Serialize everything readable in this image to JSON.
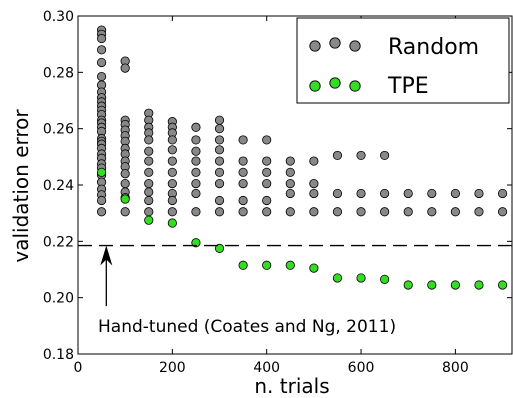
{
  "chart_data": {
    "type": "scatter",
    "xlabel": "n. trials",
    "ylabel": "validation error",
    "xlim": [
      0,
      920
    ],
    "ylim": [
      0.18,
      0.3
    ],
    "xticks": [
      0,
      200,
      400,
      600,
      800
    ],
    "yticks": [
      0.18,
      0.2,
      0.22,
      0.24,
      0.26,
      0.28,
      0.3
    ],
    "xtick_labels": [
      "0",
      "200",
      "400",
      "600",
      "800"
    ],
    "ytick_labels": [
      "0.18",
      "0.20",
      "0.22",
      "0.24",
      "0.26",
      "0.28",
      "0.30"
    ],
    "grid": false,
    "legend_position": "top-right",
    "reference_line": {
      "y": 0.2185,
      "style": "dashed",
      "color": "#000000"
    },
    "annotation": {
      "text": "Hand-tuned (Coates and Ng, 2011)",
      "arrow_x": 60,
      "arrow_from_y": 0.197,
      "arrow_to_y": 0.2185
    },
    "series": [
      {
        "name": "Random",
        "color": "#888888",
        "points": [
          [
            50,
            0.295
          ],
          [
            50,
            0.2935
          ],
          [
            50,
            0.292
          ],
          [
            50,
            0.288
          ],
          [
            50,
            0.2835
          ],
          [
            50,
            0.2785
          ],
          [
            50,
            0.2755
          ],
          [
            50,
            0.273
          ],
          [
            50,
            0.271
          ],
          [
            50,
            0.2695
          ],
          [
            50,
            0.268
          ],
          [
            50,
            0.2665
          ],
          [
            50,
            0.265
          ],
          [
            50,
            0.263
          ],
          [
            50,
            0.262
          ],
          [
            50,
            0.2605
          ],
          [
            50,
            0.259
          ],
          [
            50,
            0.2565
          ],
          [
            50,
            0.2555
          ],
          [
            50,
            0.2545
          ],
          [
            50,
            0.253
          ],
          [
            50,
            0.251
          ],
          [
            50,
            0.2495
          ],
          [
            50,
            0.2475
          ],
          [
            50,
            0.246
          ],
          [
            50,
            0.2435
          ],
          [
            50,
            0.241
          ],
          [
            50,
            0.2385
          ],
          [
            50,
            0.2365
          ],
          [
            50,
            0.2345
          ],
          [
            50,
            0.2305
          ],
          [
            100,
            0.284
          ],
          [
            100,
            0.2815
          ],
          [
            100,
            0.263
          ],
          [
            100,
            0.2615
          ],
          [
            100,
            0.2595
          ],
          [
            100,
            0.2575
          ],
          [
            100,
            0.2555
          ],
          [
            100,
            0.253
          ],
          [
            100,
            0.251
          ],
          [
            100,
            0.2485
          ],
          [
            100,
            0.2465
          ],
          [
            100,
            0.244
          ],
          [
            100,
            0.2405
          ],
          [
            100,
            0.2375
          ],
          [
            100,
            0.2355
          ],
          [
            100,
            0.2305
          ],
          [
            150,
            0.2655
          ],
          [
            150,
            0.263
          ],
          [
            150,
            0.2605
          ],
          [
            150,
            0.2585
          ],
          [
            150,
            0.256
          ],
          [
            150,
            0.252
          ],
          [
            150,
            0.2485
          ],
          [
            150,
            0.2445
          ],
          [
            150,
            0.2405
          ],
          [
            150,
            0.2375
          ],
          [
            150,
            0.2345
          ],
          [
            150,
            0.2305
          ],
          [
            200,
            0.2625
          ],
          [
            200,
            0.2605
          ],
          [
            200,
            0.2585
          ],
          [
            200,
            0.256
          ],
          [
            200,
            0.2525
          ],
          [
            200,
            0.2485
          ],
          [
            200,
            0.2445
          ],
          [
            200,
            0.2405
          ],
          [
            200,
            0.237
          ],
          [
            200,
            0.2345
          ],
          [
            200,
            0.2305
          ],
          [
            250,
            0.2605
          ],
          [
            250,
            0.256
          ],
          [
            250,
            0.252
          ],
          [
            250,
            0.2485
          ],
          [
            250,
            0.2445
          ],
          [
            250,
            0.2405
          ],
          [
            250,
            0.237
          ],
          [
            250,
            0.2305
          ],
          [
            300,
            0.263
          ],
          [
            300,
            0.26
          ],
          [
            300,
            0.256
          ],
          [
            300,
            0.2525
          ],
          [
            300,
            0.2485
          ],
          [
            300,
            0.2445
          ],
          [
            300,
            0.2405
          ],
          [
            300,
            0.2345
          ],
          [
            300,
            0.2305
          ],
          [
            350,
            0.256
          ],
          [
            350,
            0.2485
          ],
          [
            350,
            0.2445
          ],
          [
            350,
            0.2405
          ],
          [
            350,
            0.2345
          ],
          [
            350,
            0.2305
          ],
          [
            400,
            0.256
          ],
          [
            400,
            0.2485
          ],
          [
            400,
            0.2445
          ],
          [
            400,
            0.2405
          ],
          [
            400,
            0.2345
          ],
          [
            400,
            0.2305
          ],
          [
            450,
            0.2485
          ],
          [
            450,
            0.2445
          ],
          [
            450,
            0.2405
          ],
          [
            450,
            0.237
          ],
          [
            450,
            0.2305
          ],
          [
            500,
            0.2485
          ],
          [
            500,
            0.2405
          ],
          [
            500,
            0.237
          ],
          [
            500,
            0.2305
          ],
          [
            550,
            0.2505
          ],
          [
            550,
            0.237
          ],
          [
            550,
            0.2305
          ],
          [
            600,
            0.2505
          ],
          [
            600,
            0.237
          ],
          [
            600,
            0.2305
          ],
          [
            650,
            0.2505
          ],
          [
            650,
            0.237
          ],
          [
            650,
            0.2305
          ],
          [
            700,
            0.237
          ],
          [
            700,
            0.2305
          ],
          [
            750,
            0.237
          ],
          [
            750,
            0.2305
          ],
          [
            800,
            0.237
          ],
          [
            800,
            0.2305
          ],
          [
            850,
            0.237
          ],
          [
            850,
            0.2305
          ],
          [
            900,
            0.237
          ],
          [
            900,
            0.2305
          ]
        ]
      },
      {
        "name": "TPE",
        "color": "#33dd22",
        "points": [
          [
            50,
            0.2445
          ],
          [
            100,
            0.235
          ],
          [
            150,
            0.2275
          ],
          [
            200,
            0.2265
          ],
          [
            250,
            0.2195
          ],
          [
            300,
            0.2175
          ],
          [
            350,
            0.2115
          ],
          [
            400,
            0.2115
          ],
          [
            450,
            0.2115
          ],
          [
            500,
            0.2105
          ],
          [
            550,
            0.207
          ],
          [
            600,
            0.207
          ],
          [
            650,
            0.2065
          ],
          [
            700,
            0.2045
          ],
          [
            750,
            0.2045
          ],
          [
            800,
            0.2045
          ],
          [
            850,
            0.2045
          ],
          [
            900,
            0.2045
          ]
        ]
      }
    ]
  }
}
